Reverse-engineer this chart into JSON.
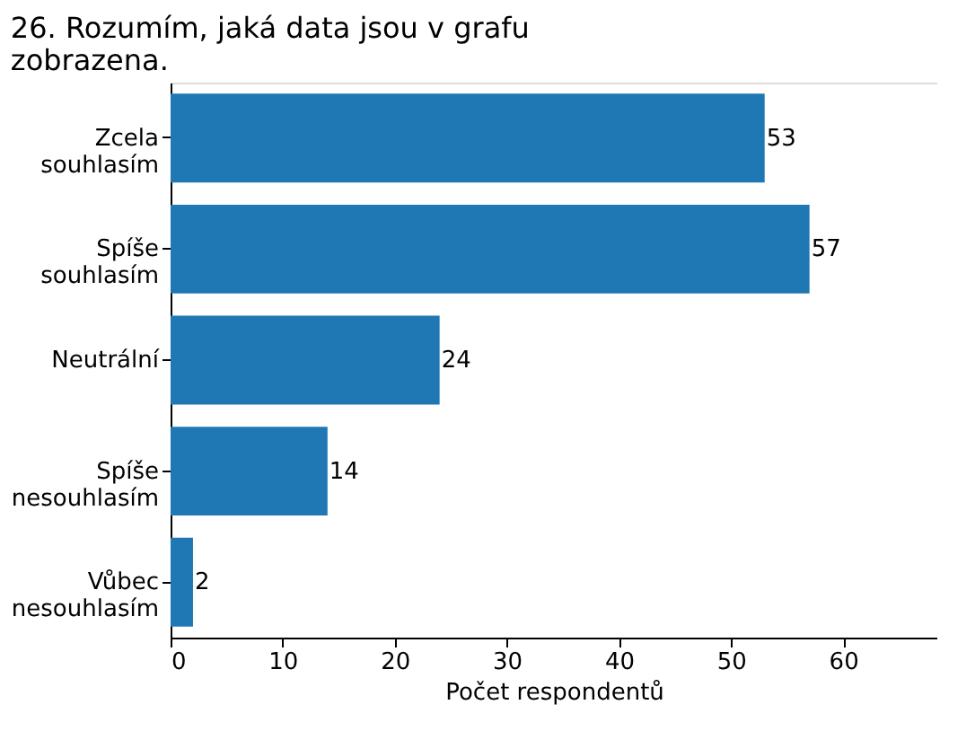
{
  "chart_data": {
    "type": "bar",
    "orientation": "horizontal",
    "title": "26. Rozumím, jaká data jsou v grafu\nzobrazena.",
    "xlabel": "Počet respondentů",
    "categories": [
      "Zcela\nsouhlasím",
      "Spíše\nsouhlasím",
      "Neutrální",
      "Spíše\nnesouhlasím",
      "Vůbec\nnesouhlasím"
    ],
    "values": [
      53,
      57,
      24,
      14,
      2
    ],
    "color": "#1f77b4",
    "data_labels": true,
    "xlim": [
      0,
      68.4
    ],
    "xticks": [
      0,
      10,
      20,
      30,
      40,
      50,
      60
    ],
    "grid": false
  }
}
